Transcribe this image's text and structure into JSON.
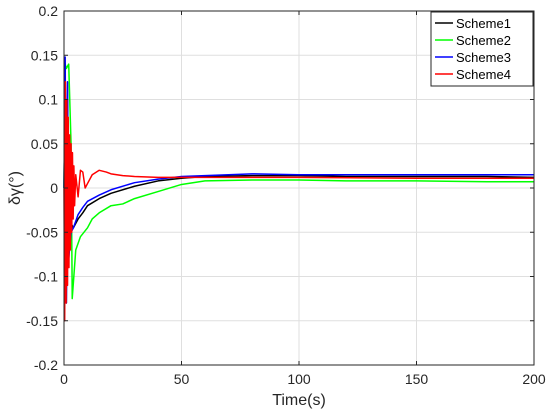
{
  "chart_data": {
    "type": "line",
    "title": "",
    "xlabel": "Time(s)",
    "ylabel": "δγ(°)",
    "xlim": [
      0,
      200
    ],
    "ylim": [
      -0.2,
      0.2
    ],
    "xticks": [
      0,
      50,
      100,
      150,
      200
    ],
    "xtick_labels": [
      "0",
      "50",
      "100",
      "150",
      "200"
    ],
    "yticks": [
      -0.2,
      -0.15,
      -0.1,
      -0.05,
      0,
      0.05,
      0.1,
      0.15,
      0.2
    ],
    "ytick_labels": [
      "-0.2",
      "-0.15",
      "-0.1",
      "-0.05",
      "0",
      "0.05",
      "0.1",
      "0.15",
      "0.2"
    ],
    "grid": true,
    "legend_position": "top-right",
    "series": [
      {
        "name": "Scheme1",
        "color": "#000000",
        "x": [
          0,
          0.5,
          1,
          1.5,
          2,
          3,
          4,
          6,
          8,
          10,
          15,
          20,
          30,
          40,
          50,
          60,
          80,
          100,
          120,
          150,
          180,
          200
        ],
        "y": [
          0.0,
          0.14,
          -0.13,
          0.1,
          -0.06,
          -0.04,
          -0.045,
          -0.035,
          -0.028,
          -0.02,
          -0.012,
          -0.006,
          0.002,
          0.008,
          0.011,
          0.013,
          0.014,
          0.014,
          0.013,
          0.013,
          0.013,
          0.012
        ]
      },
      {
        "name": "Scheme2",
        "color": "#00ff00",
        "x": [
          0,
          0.5,
          1,
          2,
          3,
          3.5,
          5,
          7,
          10,
          12,
          15,
          20,
          25,
          30,
          40,
          50,
          60,
          80,
          100,
          120,
          150,
          180,
          200
        ],
        "y": [
          0.0,
          0.14,
          0.135,
          0.14,
          0.05,
          -0.125,
          -0.07,
          -0.055,
          -0.045,
          -0.035,
          -0.028,
          -0.02,
          -0.018,
          -0.012,
          -0.004,
          0.004,
          0.008,
          0.009,
          0.009,
          0.008,
          0.008,
          0.007,
          0.007
        ]
      },
      {
        "name": "Scheme3",
        "color": "#0000ff",
        "x": [
          0,
          0.5,
          1,
          1.5,
          2,
          3,
          4,
          6,
          8,
          10,
          15,
          20,
          30,
          40,
          50,
          60,
          80,
          100,
          120,
          150,
          180,
          200
        ],
        "y": [
          0.0,
          0.148,
          -0.13,
          0.12,
          -0.08,
          -0.05,
          -0.045,
          -0.03,
          -0.022,
          -0.015,
          -0.008,
          -0.002,
          0.006,
          0.01,
          0.013,
          0.014,
          0.016,
          0.015,
          0.015,
          0.015,
          0.015,
          0.015
        ]
      },
      {
        "name": "Scheme4",
        "color": "#ff0000",
        "x": [
          0,
          0.3,
          0.6,
          0.9,
          1.2,
          1.5,
          1.8,
          2.1,
          2.4,
          2.7,
          3.0,
          3.3,
          3.6,
          3.9,
          4.2,
          4.5,
          5,
          6,
          7,
          8,
          9,
          10,
          12,
          15,
          18,
          20,
          25,
          30,
          40,
          50,
          60,
          80,
          100,
          150,
          200
        ],
        "y": [
          0.0,
          -0.15,
          0.12,
          -0.13,
          0.1,
          -0.11,
          0.08,
          -0.09,
          0.06,
          -0.07,
          0.05,
          -0.05,
          0.04,
          -0.035,
          0.025,
          -0.02,
          0.015,
          -0.01,
          0.02,
          0.018,
          0.0,
          0.005,
          0.015,
          0.02,
          0.018,
          0.016,
          0.014,
          0.013,
          0.012,
          0.012,
          0.012,
          0.012,
          0.012,
          0.011,
          0.011
        ]
      }
    ]
  }
}
